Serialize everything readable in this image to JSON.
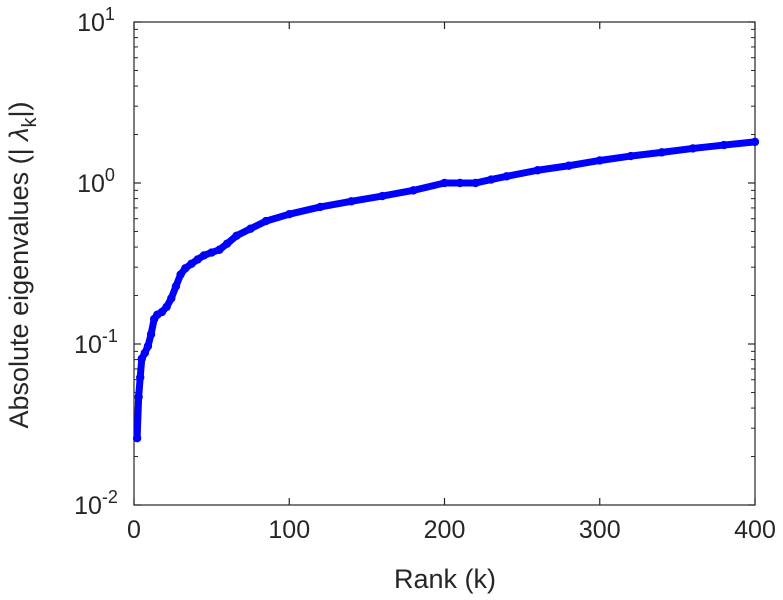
{
  "chart_data": {
    "type": "scatter",
    "xlabel": "Rank (k)",
    "ylabel": "Absolute eigenvalues (|λk|)",
    "ylabel_parts": {
      "prefix": "Absolute eigenvalues (|",
      "symbol": "λ",
      "subscript": "k",
      "suffix": "|)"
    },
    "xlim": [
      0,
      400
    ],
    "ylim": [
      0.01,
      10
    ],
    "yscale": "log",
    "grid": false,
    "x_ticks": [
      0,
      100,
      200,
      300,
      400
    ],
    "x_tick_labels": [
      "0",
      "100",
      "200",
      "300",
      "400"
    ],
    "y_ticks": [
      {
        "value": 0.01,
        "base": "10",
        "exp": "-2"
      },
      {
        "value": 0.1,
        "base": "10",
        "exp": "-1"
      },
      {
        "value": 1,
        "base": "10",
        "exp": "0"
      },
      {
        "value": 10,
        "base": "10",
        "exp": "1"
      }
    ],
    "marker_color": "#0000ff",
    "series": [
      {
        "name": "",
        "x": [
          2,
          3,
          4,
          5,
          7,
          9,
          11,
          13,
          15,
          18,
          21,
          24,
          27,
          30,
          33,
          37,
          41,
          45,
          50,
          55,
          60,
          66,
          75,
          85,
          100,
          120,
          140,
          160,
          180,
          200,
          210,
          220,
          230,
          240,
          260,
          280,
          300,
          320,
          340,
          360,
          380,
          400
        ],
        "y": [
          0.026,
          0.047,
          0.062,
          0.081,
          0.088,
          0.097,
          0.115,
          0.143,
          0.152,
          0.158,
          0.17,
          0.192,
          0.228,
          0.27,
          0.295,
          0.315,
          0.335,
          0.355,
          0.37,
          0.385,
          0.42,
          0.47,
          0.52,
          0.58,
          0.64,
          0.71,
          0.77,
          0.83,
          0.9,
          1.0,
          1.0,
          1.0,
          1.05,
          1.1,
          1.2,
          1.28,
          1.38,
          1.47,
          1.55,
          1.64,
          1.72,
          1.8
        ]
      }
    ]
  }
}
